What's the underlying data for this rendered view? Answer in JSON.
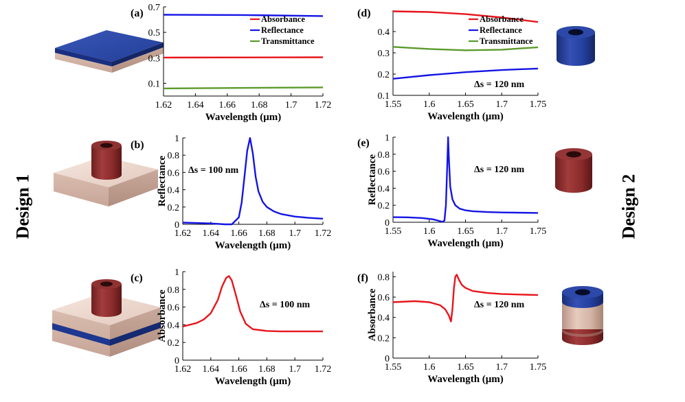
{
  "figure": {
    "design_labels": [
      "Design 1",
      "Design 2"
    ]
  },
  "colors": {
    "absorbance": "#e8141b",
    "reflectance": "#1414e6",
    "transmittance": "#5a9a2a",
    "substrate": "#e8d2c8",
    "ring": "#8b2b2b",
    "layer": "#203c9a"
  },
  "chart_data": [
    {
      "id": "a",
      "type": "line",
      "panel_label": "(a)",
      "xlabel": "Wavelength (μm)",
      "ylabel": "",
      "xlim": [
        1.62,
        1.72
      ],
      "ylim": [
        0,
        0.7
      ],
      "xticks": [
        1.62,
        1.64,
        1.66,
        1.68,
        1.7,
        1.72
      ],
      "xtick_labels": [
        "1.62",
        "1.64",
        "1.66",
        "1.68",
        "1.7",
        "1.72"
      ],
      "yticks": [
        0.1,
        0.3,
        0.5,
        0.7
      ],
      "ytick_labels": [
        "0.1",
        "0.3",
        "0.5",
        "0.7"
      ],
      "legend": "top-right",
      "annotation": "",
      "series": [
        {
          "name": "Absorbance",
          "color": "#e8141b",
          "x": [
            1.62,
            1.72
          ],
          "y": [
            0.302,
            0.304
          ]
        },
        {
          "name": "Reflectance",
          "color": "#1414e6",
          "x": [
            1.62,
            1.67,
            1.72
          ],
          "y": [
            0.638,
            0.636,
            0.628
          ]
        },
        {
          "name": "Transmittance",
          "color": "#5a9a2a",
          "x": [
            1.62,
            1.72
          ],
          "y": [
            0.06,
            0.068
          ]
        }
      ]
    },
    {
      "id": "d",
      "type": "line",
      "panel_label": "(d)",
      "xlabel": "Wavelength (μm)",
      "ylabel": "",
      "xlim": [
        1.55,
        1.75
      ],
      "ylim": [
        0.1,
        0.5
      ],
      "xticks": [
        1.55,
        1.6,
        1.65,
        1.7,
        1.75
      ],
      "xtick_labels": [
        "1.55",
        "1.6",
        "1.65",
        "1.7",
        "1.75"
      ],
      "yticks": [
        0.1,
        0.2,
        0.3,
        0.4
      ],
      "ytick_labels": [
        "0.1",
        "0.2",
        "0.3",
        "0.4"
      ],
      "legend": "top-right",
      "annotation": "Δs = 120 nm",
      "series": [
        {
          "name": "Absorbance",
          "color": "#e8141b",
          "x": [
            1.55,
            1.6,
            1.65,
            1.7,
            1.75
          ],
          "y": [
            0.495,
            0.492,
            0.482,
            0.466,
            0.445
          ]
        },
        {
          "name": "Reflectance",
          "color": "#1414e6",
          "x": [
            1.55,
            1.6,
            1.65,
            1.7,
            1.75
          ],
          "y": [
            0.178,
            0.195,
            0.209,
            0.219,
            0.226
          ]
        },
        {
          "name": "Transmittance",
          "color": "#5a9a2a",
          "x": [
            1.55,
            1.6,
            1.65,
            1.7,
            1.75
          ],
          "y": [
            0.328,
            0.318,
            0.312,
            0.315,
            0.326
          ]
        }
      ]
    },
    {
      "id": "b",
      "type": "line",
      "panel_label": "(b)",
      "xlabel": "Wavelength (μm)",
      "ylabel": "Reflectance",
      "xlim": [
        1.62,
        1.72
      ],
      "ylim": [
        0,
        1
      ],
      "xticks": [
        1.62,
        1.64,
        1.66,
        1.68,
        1.7,
        1.72
      ],
      "xtick_labels": [
        "1.62",
        "1.64",
        "1.66",
        "1.68",
        "1.7",
        "1.72"
      ],
      "yticks": [
        0,
        0.2,
        0.4,
        0.6,
        0.8,
        1
      ],
      "ytick_labels": [
        "0",
        "0.2",
        "0.4",
        "0.6",
        "0.8",
        "1"
      ],
      "legend": "none",
      "annotation": "Δs = 100 nm",
      "series": [
        {
          "name": "Reflectance",
          "color": "#1414e6",
          "x": [
            1.62,
            1.63,
            1.64,
            1.65,
            1.655,
            1.66,
            1.662,
            1.664,
            1.666,
            1.668,
            1.67,
            1.672,
            1.674,
            1.677,
            1.68,
            1.685,
            1.69,
            1.7,
            1.71,
            1.72
          ],
          "y": [
            0.02,
            0.015,
            0.01,
            0.0,
            0.0,
            0.08,
            0.25,
            0.55,
            0.85,
            1.0,
            0.82,
            0.55,
            0.38,
            0.26,
            0.2,
            0.15,
            0.12,
            0.09,
            0.075,
            0.065
          ]
        }
      ]
    },
    {
      "id": "e",
      "type": "line",
      "panel_label": "(e)",
      "xlabel": "Wavelength (μm)",
      "ylabel": "Reflectance",
      "xlim": [
        1.55,
        1.75
      ],
      "ylim": [
        0,
        1
      ],
      "xticks": [
        1.55,
        1.6,
        1.65,
        1.7,
        1.75
      ],
      "xtick_labels": [
        "1.55",
        "1.6",
        "1.65",
        "1.7",
        "1.75"
      ],
      "yticks": [
        0,
        0.2,
        0.4,
        0.6,
        0.8,
        1
      ],
      "ytick_labels": [
        "0",
        "0.2",
        "0.4",
        "0.6",
        "0.8",
        "1"
      ],
      "legend": "none",
      "annotation": "Δs = 120 nm",
      "series": [
        {
          "name": "Reflectance",
          "color": "#1414e6",
          "x": [
            1.55,
            1.57,
            1.59,
            1.605,
            1.612,
            1.618,
            1.621,
            1.623,
            1.625,
            1.626,
            1.627,
            1.629,
            1.632,
            1.636,
            1.642,
            1.65,
            1.66,
            1.68,
            1.7,
            1.75
          ],
          "y": [
            0.06,
            0.058,
            0.05,
            0.035,
            0.02,
            0.005,
            0.02,
            0.2,
            0.7,
            1.0,
            0.78,
            0.42,
            0.27,
            0.2,
            0.16,
            0.14,
            0.13,
            0.12,
            0.115,
            0.11
          ]
        }
      ]
    },
    {
      "id": "c",
      "type": "line",
      "panel_label": "(c)",
      "xlabel": "Wavelength (μm)",
      "ylabel": "Absorbance",
      "xlim": [
        1.62,
        1.72
      ],
      "ylim": [
        0,
        1
      ],
      "xticks": [
        1.62,
        1.64,
        1.66,
        1.68,
        1.7,
        1.72
      ],
      "xtick_labels": [
        "1.62",
        "1.64",
        "1.66",
        "1.68",
        "1.7",
        "1.72"
      ],
      "yticks": [
        0,
        0.2,
        0.4,
        0.6,
        0.8,
        1
      ],
      "ytick_labels": [
        "0",
        "0.2",
        "0.4",
        "0.6",
        "0.8",
        "1"
      ],
      "legend": "none",
      "annotation": "Δs = 100 nm",
      "series": [
        {
          "name": "Absorbance",
          "color": "#e8141b",
          "x": [
            1.62,
            1.63,
            1.635,
            1.64,
            1.645,
            1.648,
            1.651,
            1.653,
            1.655,
            1.658,
            1.661,
            1.665,
            1.67,
            1.68,
            1.69,
            1.7,
            1.72
          ],
          "y": [
            0.38,
            0.42,
            0.46,
            0.53,
            0.68,
            0.83,
            0.93,
            0.95,
            0.9,
            0.73,
            0.55,
            0.41,
            0.35,
            0.33,
            0.325,
            0.325,
            0.325
          ]
        }
      ]
    },
    {
      "id": "f",
      "type": "line",
      "panel_label": "(f)",
      "xlabel": "Wavelength (μm)",
      "ylabel": "Absorbance",
      "xlim": [
        1.55,
        1.75
      ],
      "ylim": [
        0,
        0.85
      ],
      "xticks": [
        1.55,
        1.6,
        1.65,
        1.7,
        1.75
      ],
      "xtick_labels": [
        "1.55",
        "1.6",
        "1.65",
        "1.7",
        "1.75"
      ],
      "yticks": [
        0,
        0.2,
        0.4,
        0.6,
        0.8
      ],
      "ytick_labels": [
        "0",
        "0.2",
        "0.4",
        "0.6",
        "0.8"
      ],
      "legend": "none",
      "annotation": "Δs = 120 nm",
      "series": [
        {
          "name": "Absorbance",
          "color": "#e8141b",
          "x": [
            1.55,
            1.58,
            1.6,
            1.615,
            1.622,
            1.627,
            1.63,
            1.632,
            1.634,
            1.636,
            1.638,
            1.641,
            1.645,
            1.65,
            1.66,
            1.68,
            1.7,
            1.75
          ],
          "y": [
            0.55,
            0.56,
            0.55,
            0.52,
            0.48,
            0.42,
            0.36,
            0.48,
            0.68,
            0.8,
            0.82,
            0.77,
            0.72,
            0.69,
            0.66,
            0.64,
            0.63,
            0.62
          ]
        }
      ]
    }
  ]
}
